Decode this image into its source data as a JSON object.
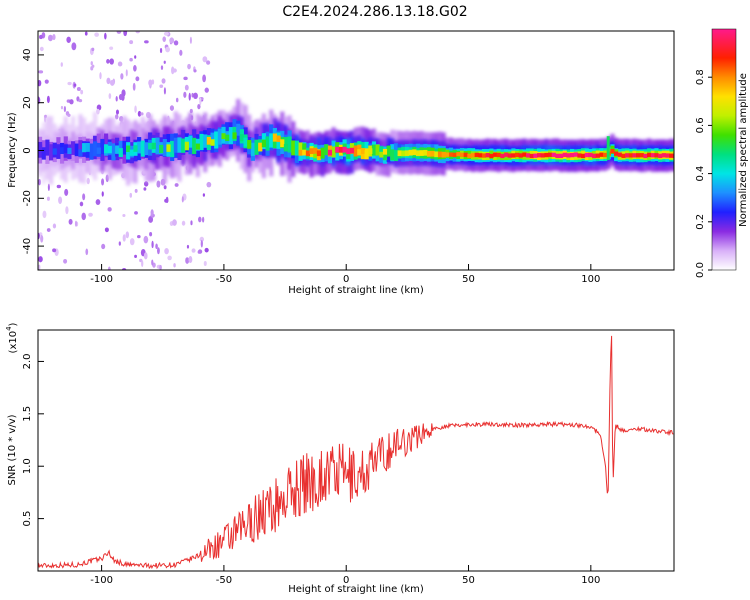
{
  "title": "C2E4.2024.286.13.18.G02",
  "chart_data": [
    {
      "type": "heatmap",
      "xlabel": "Height of straight line (km)",
      "ylabel": "Frequency (Hz)",
      "xlim": [
        -126,
        134
      ],
      "ylim": [
        -50,
        50
      ],
      "x_ticks": [
        -100,
        -50,
        0,
        50,
        100
      ],
      "y_ticks": [
        -40,
        -20,
        0,
        20,
        40
      ],
      "colorbar": {
        "label": "Normalized spectral amplitude",
        "range": [
          0,
          1
        ],
        "ticks": [
          0.0,
          0.2,
          0.4,
          0.6,
          0.8
        ]
      },
      "ridge": {
        "x": [
          -126,
          -110,
          -100,
          -90,
          -80,
          -70,
          -60,
          -50,
          -45,
          -40,
          -35,
          -30,
          -25,
          -20,
          -15,
          -10,
          -5,
          0,
          5,
          10,
          20,
          30,
          50,
          80,
          100,
          105,
          108,
          110,
          134
        ],
        "frequency": [
          0,
          0,
          1,
          0,
          1,
          2,
          3,
          6,
          8,
          1,
          3,
          5,
          2,
          0,
          -1,
          -1,
          0,
          0,
          0,
          -1,
          -1,
          -1,
          -2,
          -2,
          -2,
          -2,
          0,
          -2,
          -2
        ],
        "amplitude": [
          0.25,
          0.3,
          0.4,
          0.45,
          0.5,
          0.55,
          0.6,
          0.6,
          0.55,
          0.55,
          0.6,
          0.65,
          0.65,
          0.75,
          0.85,
          0.9,
          0.9,
          0.95,
          0.9,
          0.75,
          0.65,
          0.7,
          0.85,
          0.95,
          0.95,
          0.9,
          0.8,
          0.9,
          0.95
        ]
      }
    },
    {
      "type": "line",
      "xlabel": "Height of straight line (km)",
      "ylabel": "SNR (10 * v/v)",
      "y_multiplier": "(x10",
      "y_multiplier_exp": "4",
      "y_multiplier_close": ")",
      "xlim": [
        -126,
        134
      ],
      "ylim": [
        0,
        2.3
      ],
      "x_ticks": [
        -100,
        -50,
        0,
        50,
        100
      ],
      "y_ticks": [
        0.5,
        1.0,
        1.5,
        2.0
      ],
      "series": [
        {
          "color": "#e8302f",
          "x": [
            -126,
            -110,
            -100,
            -97,
            -95,
            -90,
            -80,
            -70,
            -65,
            -60,
            -55,
            -50,
            -45,
            -40,
            -35,
            -30,
            -25,
            -20,
            -15,
            -10,
            -5,
            0,
            5,
            10,
            15,
            20,
            25,
            30,
            35,
            40,
            50,
            60,
            70,
            80,
            90,
            95,
            100,
            104,
            106,
            107,
            108,
            108.5,
            109,
            110,
            112,
            115,
            120,
            125,
            134
          ],
          "values": [
            0.05,
            0.06,
            0.12,
            0.18,
            0.1,
            0.06,
            0.05,
            0.06,
            0.1,
            0.15,
            0.22,
            0.28,
            0.35,
            0.45,
            0.55,
            0.6,
            0.7,
            0.8,
            0.85,
            0.9,
            0.95,
            0.92,
            0.9,
            1.0,
            1.1,
            1.2,
            1.25,
            1.3,
            1.35,
            1.38,
            1.4,
            1.4,
            1.39,
            1.4,
            1.4,
            1.39,
            1.38,
            1.3,
            1.0,
            0.65,
            2.0,
            2.25,
            0.75,
            1.4,
            1.35,
            1.34,
            1.36,
            1.34,
            1.32
          ]
        }
      ]
    }
  ]
}
